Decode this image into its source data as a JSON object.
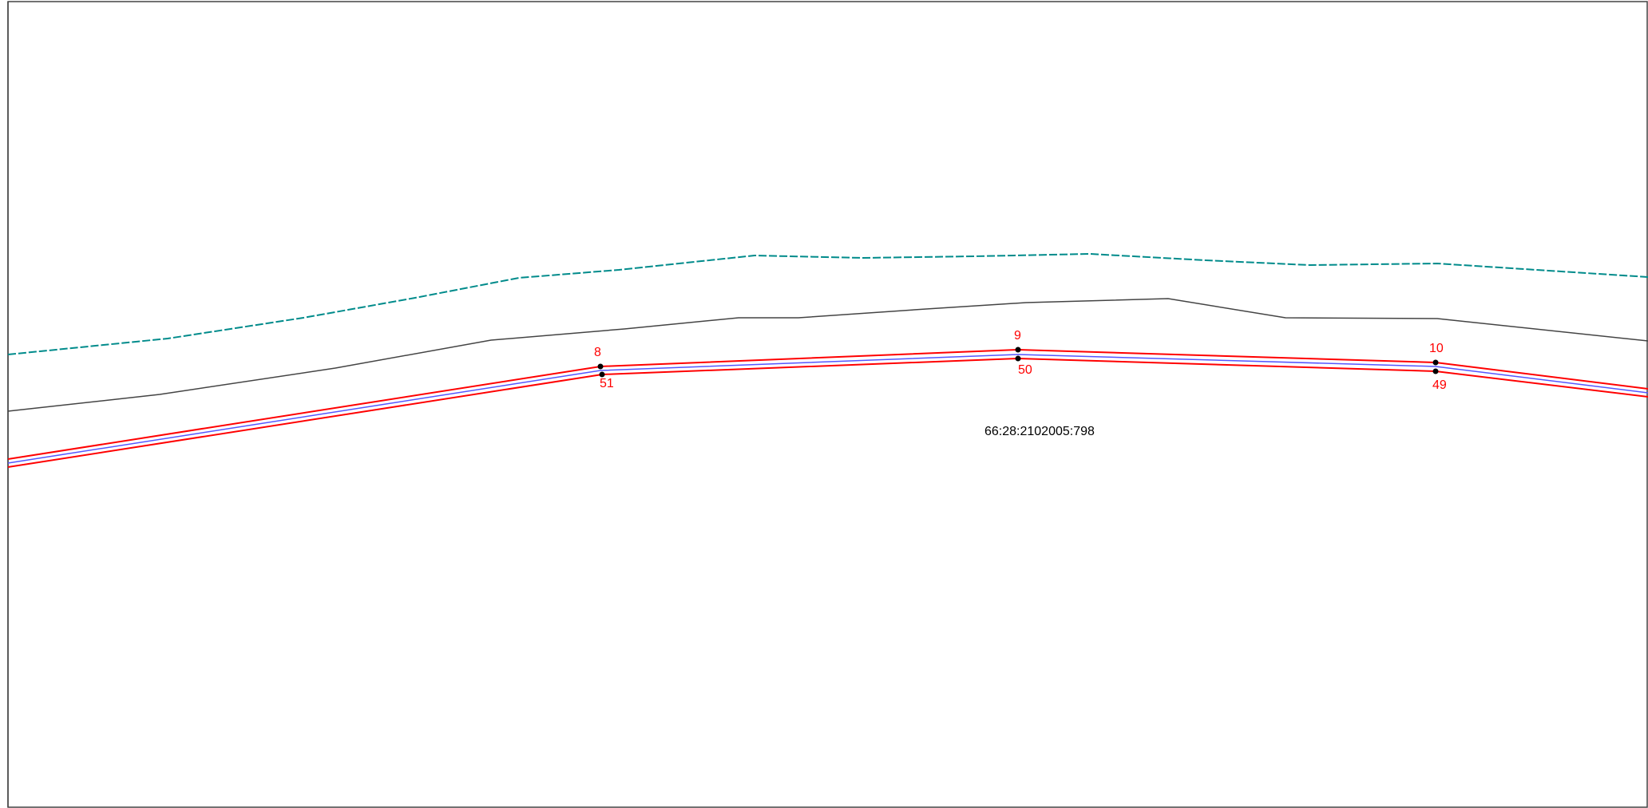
{
  "parcel": {
    "cadastral_number": "66:28:2102005:798"
  },
  "points": [
    {
      "id": "point-8",
      "label": "8"
    },
    {
      "id": "point-9",
      "label": "9"
    },
    {
      "id": "point-10",
      "label": "10"
    },
    {
      "id": "point-51",
      "label": "51"
    },
    {
      "id": "point-50",
      "label": "50"
    },
    {
      "id": "point-49",
      "label": "49"
    }
  ],
  "style": {
    "parcel_boundary_color": "#ff0000",
    "centerline_color": "#5555ff",
    "water_boundary_color": "#008b8b",
    "reference_line_color": "#444444",
    "point_color": "#000000",
    "frame_color": "#444444"
  }
}
